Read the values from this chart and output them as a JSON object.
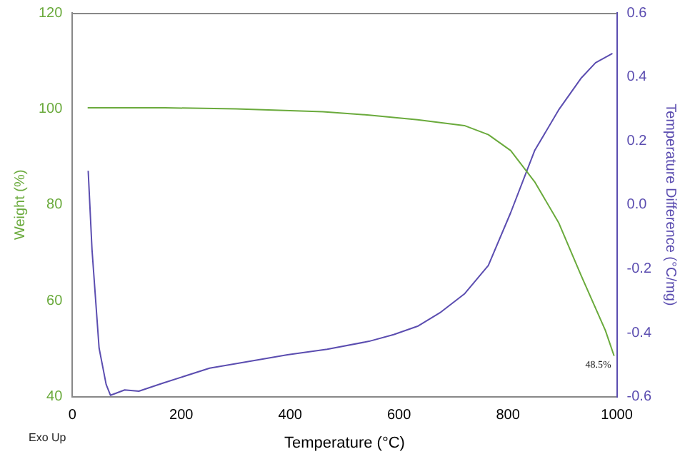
{
  "chart_data": {
    "type": "line",
    "xlabel": "Temperature (°C)",
    "ylabel": "Weight (%)",
    "y2label": "Temperature Difference (°C/mg)",
    "xlim": [
      0,
      1000
    ],
    "xticks": [
      0,
      200,
      400,
      600,
      800,
      1000
    ],
    "ylim": [
      40,
      120
    ],
    "yticks": [
      40,
      60,
      80,
      100,
      120
    ],
    "y2lim": [
      -0.6,
      0.6
    ],
    "y2ticks": [
      -0.6,
      -0.4,
      -0.2,
      {
        "value": 0,
        "label": "0.0"
      },
      0.2,
      0.4,
      0.6
    ],
    "grid": false,
    "legend": false,
    "marker": "none",
    "line_style": "solid",
    "annotations": [
      "Exo Up",
      {
        "text": "48.5%",
        "x": 995,
        "y": 48.5
      }
    ],
    "series": [
      {
        "color": "#6aaa3c",
        "x": [
          28,
          170,
          300,
          400,
          460,
          545,
          634,
          720,
          764,
          805,
          849,
          893,
          935,
          979,
          995
        ],
        "values": [
          100.2,
          100.2,
          100,
          99.6,
          99.4,
          98.7,
          97.7,
          96.5,
          94.6,
          91.3,
          84.8,
          76.3,
          65.1,
          53.8,
          48.5
        ]
      },
      {
        "color": "#5b4db0",
        "axis": "y2",
        "x": [
          29,
          36,
          49,
          62,
          70,
          96,
          122,
          166,
          252,
          338,
          395,
          468,
          545,
          590,
          634,
          675,
          720,
          764,
          805,
          849,
          893,
          935,
          961,
          992
        ],
        "values": [
          0.106,
          -0.14,
          -0.448,
          -0.562,
          -0.596,
          -0.579,
          -0.583,
          -0.558,
          -0.511,
          -0.486,
          -0.469,
          -0.452,
          -0.427,
          -0.406,
          -0.38,
          -0.338,
          -0.279,
          -0.19,
          -0.025,
          0.169,
          0.296,
          0.397,
          0.444,
          0.473
        ]
      }
    ]
  }
}
